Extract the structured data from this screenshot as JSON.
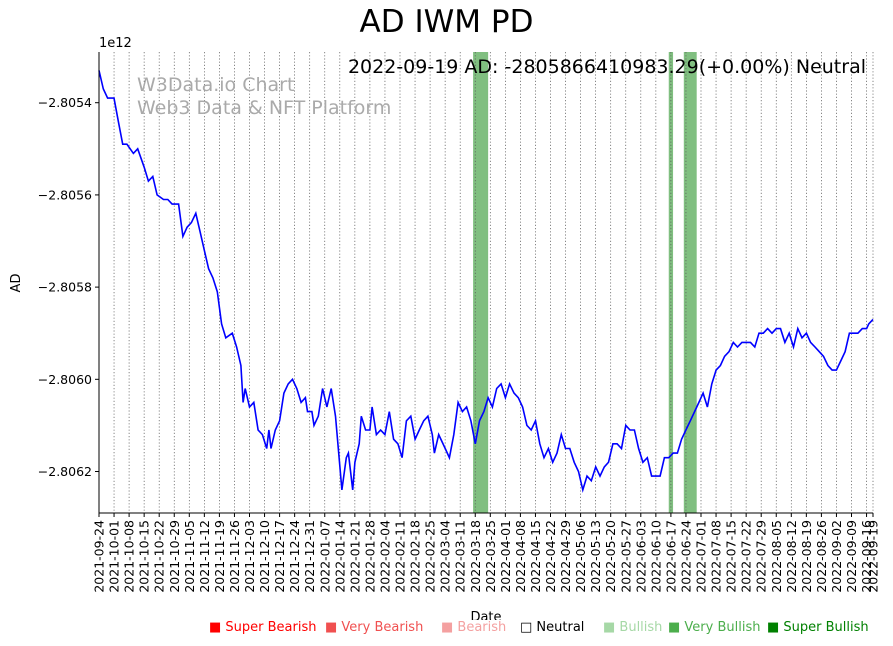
{
  "chart_data": {
    "type": "line",
    "title": "AD IWM PD",
    "xlabel": "Date",
    "ylabel": "AD",
    "y_scale_label": "1e12",
    "ylim": [
      -2.80629,
      -2.80529
    ],
    "y_ticks": [
      -2.8054,
      -2.8056,
      -2.8058,
      -2.806,
      -2.8062
    ],
    "y_tick_labels": [
      "−2.8054",
      "−2.8056",
      "−2.8058",
      "−2.8060",
      "−2.8062"
    ],
    "x_start": "2021-09-24",
    "x_end": "2022-09-19",
    "x_ticks": [
      "2021-09-24",
      "2021-10-01",
      "2021-10-08",
      "2021-10-15",
      "2021-10-22",
      "2021-10-29",
      "2021-11-05",
      "2021-11-12",
      "2021-11-19",
      "2021-11-26",
      "2021-12-03",
      "2021-12-10",
      "2021-12-17",
      "2021-12-24",
      "2021-12-31",
      "2022-01-07",
      "2022-01-14",
      "2022-01-21",
      "2022-01-28",
      "2022-02-04",
      "2022-02-11",
      "2022-02-18",
      "2022-02-25",
      "2022-03-04",
      "2022-03-11",
      "2022-03-18",
      "2022-03-25",
      "2022-04-01",
      "2022-04-08",
      "2022-04-15",
      "2022-04-22",
      "2022-04-29",
      "2022-05-06",
      "2022-05-13",
      "2022-05-20",
      "2022-05-27",
      "2022-06-03",
      "2022-06-10",
      "2022-06-17",
      "2022-06-24",
      "2022-07-01",
      "2022-07-08",
      "2022-07-15",
      "2022-07-22",
      "2022-07-29",
      "2022-08-05",
      "2022-08-12",
      "2022-08-19",
      "2022-08-26",
      "2022-09-02",
      "2022-09-09",
      "2022-09-16",
      "2022-09-19"
    ],
    "series": [
      {
        "name": "AD",
        "color": "#0000ff",
        "points": [
          [
            "2021-09-24",
            -2.80533
          ],
          [
            "2021-09-26",
            -2.80537
          ],
          [
            "2021-09-28",
            -2.80539
          ],
          [
            "2021-10-01",
            -2.80539
          ],
          [
            "2021-10-03",
            -2.80544
          ],
          [
            "2021-10-05",
            -2.80549
          ],
          [
            "2021-10-07",
            -2.80549
          ],
          [
            "2021-10-10",
            -2.80551
          ],
          [
            "2021-10-12",
            -2.8055
          ],
          [
            "2021-10-15",
            -2.80554
          ],
          [
            "2021-10-17",
            -2.80557
          ],
          [
            "2021-10-19",
            -2.80556
          ],
          [
            "2021-10-21",
            -2.8056
          ],
          [
            "2021-10-24",
            -2.80561
          ],
          [
            "2021-10-26",
            -2.80561
          ],
          [
            "2021-10-28",
            -2.80562
          ],
          [
            "2021-10-31",
            -2.80562
          ],
          [
            "2021-11-02",
            -2.80569
          ],
          [
            "2021-11-04",
            -2.80567
          ],
          [
            "2021-11-06",
            -2.80566
          ],
          [
            "2021-11-08",
            -2.80564
          ],
          [
            "2021-11-10",
            -2.80568
          ],
          [
            "2021-11-12",
            -2.80572
          ],
          [
            "2021-11-14",
            -2.80576
          ],
          [
            "2021-11-16",
            -2.80578
          ],
          [
            "2021-11-18",
            -2.80581
          ],
          [
            "2021-11-20",
            -2.80588
          ],
          [
            "2021-11-22",
            -2.80591
          ],
          [
            "2021-11-25",
            -2.8059
          ],
          [
            "2021-11-27",
            -2.80593
          ],
          [
            "2021-11-29",
            -2.80597
          ],
          [
            "2021-11-30",
            -2.80605
          ],
          [
            "2021-12-01",
            -2.80602
          ],
          [
            "2021-12-03",
            -2.80606
          ],
          [
            "2021-12-05",
            -2.80605
          ],
          [
            "2021-12-07",
            -2.80611
          ],
          [
            "2021-12-09",
            -2.80612
          ],
          [
            "2021-12-11",
            -2.80615
          ],
          [
            "2021-12-12",
            -2.80611
          ],
          [
            "2021-12-13",
            -2.80615
          ],
          [
            "2021-12-15",
            -2.80611
          ],
          [
            "2021-12-17",
            -2.80609
          ],
          [
            "2021-12-19",
            -2.80603
          ],
          [
            "2021-12-21",
            -2.80601
          ],
          [
            "2021-12-23",
            -2.806
          ],
          [
            "2021-12-25",
            -2.80602
          ],
          [
            "2021-12-27",
            -2.80605
          ],
          [
            "2021-12-29",
            -2.80604
          ],
          [
            "2021-12-30",
            -2.80607
          ],
          [
            "2022-01-01",
            -2.80607
          ],
          [
            "2022-01-02",
            -2.8061
          ],
          [
            "2022-01-04",
            -2.80608
          ],
          [
            "2022-01-06",
            -2.80602
          ],
          [
            "2022-01-08",
            -2.80606
          ],
          [
            "2022-01-10",
            -2.80602
          ],
          [
            "2022-01-12",
            -2.80608
          ],
          [
            "2022-01-15",
            -2.80624
          ],
          [
            "2022-01-17",
            -2.80617
          ],
          [
            "2022-01-18",
            -2.80616
          ],
          [
            "2022-01-20",
            -2.80624
          ],
          [
            "2022-01-21",
            -2.80618
          ],
          [
            "2022-01-23",
            -2.80614
          ],
          [
            "2022-01-24",
            -2.80608
          ],
          [
            "2022-01-26",
            -2.80611
          ],
          [
            "2022-01-28",
            -2.80611
          ],
          [
            "2022-01-29",
            -2.80606
          ],
          [
            "2022-01-31",
            -2.80612
          ],
          [
            "2022-02-02",
            -2.80611
          ],
          [
            "2022-02-04",
            -2.80612
          ],
          [
            "2022-02-06",
            -2.80607
          ],
          [
            "2022-02-08",
            -2.80613
          ],
          [
            "2022-02-10",
            -2.80614
          ],
          [
            "2022-02-12",
            -2.80617
          ],
          [
            "2022-02-14",
            -2.80609
          ],
          [
            "2022-02-16",
            -2.80608
          ],
          [
            "2022-02-18",
            -2.80613
          ],
          [
            "2022-02-20",
            -2.80611
          ],
          [
            "2022-02-22",
            -2.80609
          ],
          [
            "2022-02-24",
            -2.80608
          ],
          [
            "2022-02-26",
            -2.80612
          ],
          [
            "2022-02-27",
            -2.80616
          ],
          [
            "2022-03-01",
            -2.80612
          ],
          [
            "2022-03-04",
            -2.80615
          ],
          [
            "2022-03-06",
            -2.80617
          ],
          [
            "2022-03-08",
            -2.80612
          ],
          [
            "2022-03-10",
            -2.80605
          ],
          [
            "2022-03-12",
            -2.80607
          ],
          [
            "2022-03-14",
            -2.80606
          ],
          [
            "2022-03-16",
            -2.80609
          ],
          [
            "2022-03-18",
            -2.80614
          ],
          [
            "2022-03-20",
            -2.80609
          ],
          [
            "2022-03-22",
            -2.80607
          ],
          [
            "2022-03-24",
            -2.80604
          ],
          [
            "2022-03-26",
            -2.80606
          ],
          [
            "2022-03-28",
            -2.80602
          ],
          [
            "2022-03-30",
            -2.80601
          ],
          [
            "2022-04-01",
            -2.80604
          ],
          [
            "2022-04-03",
            -2.80601
          ],
          [
            "2022-04-05",
            -2.80603
          ],
          [
            "2022-04-07",
            -2.80604
          ],
          [
            "2022-04-09",
            -2.80606
          ],
          [
            "2022-04-11",
            -2.8061
          ],
          [
            "2022-04-13",
            -2.80611
          ],
          [
            "2022-04-15",
            -2.80609
          ],
          [
            "2022-04-17",
            -2.80614
          ],
          [
            "2022-04-19",
            -2.80617
          ],
          [
            "2022-04-21",
            -2.80615
          ],
          [
            "2022-04-23",
            -2.80618
          ],
          [
            "2022-04-25",
            -2.80616
          ],
          [
            "2022-04-27",
            -2.80612
          ],
          [
            "2022-04-29",
            -2.80615
          ],
          [
            "2022-05-01",
            -2.80615
          ],
          [
            "2022-05-03",
            -2.80618
          ],
          [
            "2022-05-05",
            -2.8062
          ],
          [
            "2022-05-07",
            -2.80624
          ],
          [
            "2022-05-09",
            -2.80621
          ],
          [
            "2022-05-11",
            -2.80622
          ],
          [
            "2022-05-13",
            -2.80619
          ],
          [
            "2022-05-15",
            -2.80621
          ],
          [
            "2022-05-17",
            -2.80619
          ],
          [
            "2022-05-19",
            -2.80618
          ],
          [
            "2022-05-21",
            -2.80614
          ],
          [
            "2022-05-23",
            -2.80614
          ],
          [
            "2022-05-25",
            -2.80615
          ],
          [
            "2022-05-27",
            -2.8061
          ],
          [
            "2022-05-29",
            -2.80611
          ],
          [
            "2022-05-31",
            -2.80611
          ],
          [
            "2022-06-02",
            -2.80615
          ],
          [
            "2022-06-04",
            -2.80618
          ],
          [
            "2022-06-06",
            -2.80617
          ],
          [
            "2022-06-08",
            -2.80621
          ],
          [
            "2022-06-10",
            -2.80621
          ],
          [
            "2022-06-12",
            -2.80621
          ],
          [
            "2022-06-14",
            -2.80617
          ],
          [
            "2022-06-16",
            -2.80617
          ],
          [
            "2022-06-18",
            -2.80616
          ],
          [
            "2022-06-20",
            -2.80616
          ],
          [
            "2022-06-22",
            -2.80613
          ],
          [
            "2022-06-24",
            -2.80611
          ],
          [
            "2022-06-26",
            -2.80609
          ],
          [
            "2022-06-28",
            -2.80607
          ],
          [
            "2022-06-30",
            -2.80605
          ],
          [
            "2022-07-02",
            -2.80603
          ],
          [
            "2022-07-04",
            -2.80606
          ],
          [
            "2022-07-06",
            -2.80601
          ],
          [
            "2022-07-08",
            -2.80598
          ],
          [
            "2022-07-10",
            -2.80597
          ],
          [
            "2022-07-12",
            -2.80595
          ],
          [
            "2022-07-14",
            -2.80594
          ],
          [
            "2022-07-16",
            -2.80592
          ],
          [
            "2022-07-18",
            -2.80593
          ],
          [
            "2022-07-20",
            -2.80592
          ],
          [
            "2022-07-22",
            -2.80592
          ],
          [
            "2022-07-24",
            -2.80592
          ],
          [
            "2022-07-26",
            -2.80593
          ],
          [
            "2022-07-28",
            -2.8059
          ],
          [
            "2022-07-30",
            -2.8059
          ],
          [
            "2022-08-01",
            -2.80589
          ],
          [
            "2022-08-03",
            -2.8059
          ],
          [
            "2022-08-05",
            -2.80589
          ],
          [
            "2022-08-07",
            -2.80589
          ],
          [
            "2022-08-09",
            -2.80592
          ],
          [
            "2022-08-11",
            -2.8059
          ],
          [
            "2022-08-13",
            -2.80593
          ],
          [
            "2022-08-15",
            -2.80589
          ],
          [
            "2022-08-17",
            -2.80591
          ],
          [
            "2022-08-19",
            -2.8059
          ],
          [
            "2022-08-21",
            -2.80592
          ],
          [
            "2022-08-23",
            -2.80593
          ],
          [
            "2022-08-25",
            -2.80594
          ],
          [
            "2022-08-27",
            -2.80595
          ],
          [
            "2022-08-29",
            -2.80597
          ],
          [
            "2022-08-31",
            -2.80598
          ],
          [
            "2022-09-02",
            -2.80598
          ],
          [
            "2022-09-04",
            -2.80596
          ],
          [
            "2022-09-06",
            -2.80594
          ],
          [
            "2022-09-08",
            -2.8059
          ],
          [
            "2022-09-10",
            -2.8059
          ],
          [
            "2022-09-12",
            -2.8059
          ],
          [
            "2022-09-14",
            -2.80589
          ],
          [
            "2022-09-16",
            -2.80589
          ],
          [
            "2022-09-17",
            -2.80588
          ],
          [
            "2022-09-19",
            -2.80587
          ]
        ]
      }
    ],
    "highlight_bands": [
      {
        "start": "2022-03-17",
        "end": "2022-03-24",
        "signal": "Very Bullish",
        "color": "#6ab46a"
      },
      {
        "start": "2022-06-16",
        "end": "2022-06-18",
        "signal": "Very Bullish",
        "color": "#6ab46a"
      },
      {
        "start": "2022-06-23",
        "end": "2022-06-29",
        "signal": "Very Bullish",
        "color": "#6ab46a"
      }
    ],
    "annotation": "2022-09-19 AD: -2805866410983.29(+0.00%) Neutral",
    "watermark": [
      "W3Data.io Chart",
      "Web3 Data & NFT Platform"
    ],
    "legend": [
      {
        "label": "Super Bearish",
        "color": "#ff0000"
      },
      {
        "label": "Very Bearish",
        "color": "#f05050"
      },
      {
        "label": "Bearish",
        "color": "#f4a0a0"
      },
      {
        "label": "Neutral",
        "color": "#000000"
      },
      {
        "label": "Bullish",
        "color": "#a6d8a6"
      },
      {
        "label": "Very Bullish",
        "color": "#4cae4c"
      },
      {
        "label": "Super Bullish",
        "color": "#008000"
      }
    ]
  }
}
